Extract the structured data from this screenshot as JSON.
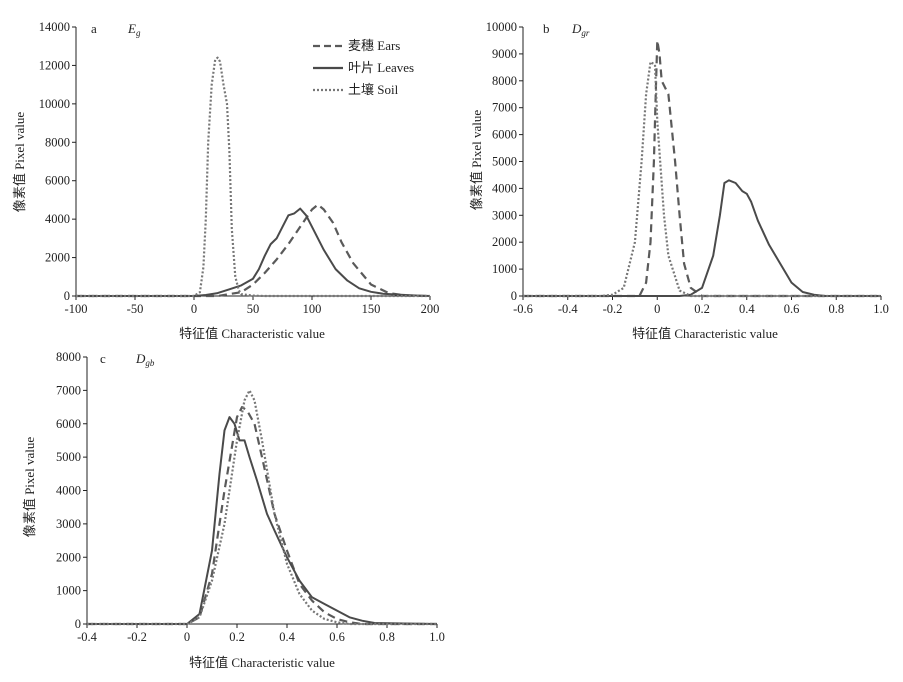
{
  "figure": {
    "legend": [
      {
        "label": "麦穗 Ears",
        "dash": "dash"
      },
      {
        "label": "叶片 Leaves",
        "dash": "solid"
      },
      {
        "label": "土壤 Soil",
        "dash": "dot"
      }
    ],
    "colors": {
      "ears": "#5a5a5a",
      "leaves": "#4a4a4a",
      "soil": "#777777"
    }
  },
  "chart_data": [
    {
      "type": "line",
      "panel": "a",
      "var_main": "E",
      "var_sub": "g",
      "xlabel": "特征值 Characteristic value",
      "ylabel": "像素值 Pixel value",
      "xlim": [
        -100,
        200
      ],
      "ylim": [
        0,
        14000
      ],
      "xticks": [
        -100,
        -50,
        0,
        50,
        100,
        150,
        200
      ],
      "yticks": [
        0,
        2000,
        4000,
        6000,
        8000,
        10000,
        12000,
        14000
      ],
      "legend_position": "top-right",
      "series": [
        {
          "name": "麦穗 Ears",
          "style": "dash",
          "x": [
            -100,
            20,
            40,
            50,
            60,
            70,
            80,
            90,
            100,
            105,
            110,
            118,
            125,
            135,
            150,
            165,
            180,
            200
          ],
          "y": [
            0,
            0,
            200,
            600,
            1200,
            1900,
            2700,
            3600,
            4500,
            4750,
            4500,
            3800,
            2800,
            1700,
            600,
            150,
            20,
            0
          ]
        },
        {
          "name": "叶片 Leaves",
          "style": "solid",
          "x": [
            -100,
            0,
            10,
            20,
            30,
            40,
            50,
            55,
            60,
            65,
            70,
            75,
            80,
            85,
            90,
            95,
            100,
            110,
            120,
            130,
            140,
            150,
            160,
            175,
            190,
            200
          ],
          "y": [
            0,
            0,
            50,
            150,
            350,
            550,
            900,
            1400,
            2100,
            2700,
            3000,
            3600,
            4200,
            4300,
            4550,
            4200,
            3600,
            2400,
            1400,
            800,
            400,
            220,
            120,
            60,
            20,
            0
          ]
        },
        {
          "name": "土壤 Soil",
          "style": "dot",
          "x": [
            -100,
            0,
            5,
            8,
            10,
            12,
            15,
            18,
            20,
            22,
            25,
            28,
            30,
            32,
            35,
            38,
            40,
            50,
            60,
            200
          ],
          "y": [
            0,
            0,
            200,
            1500,
            4000,
            8000,
            11000,
            12300,
            12400,
            12200,
            11000,
            10000,
            7500,
            3500,
            1000,
            300,
            100,
            20,
            0,
            0
          ]
        }
      ]
    },
    {
      "type": "line",
      "panel": "b",
      "var_main": "D",
      "var_sub": "gr",
      "xlabel": "特征值 Characteristic value",
      "ylabel": "像素值 Pixel value",
      "xlim": [
        -0.6,
        1.0
      ],
      "ylim": [
        0,
        10000
      ],
      "xticks": [
        -0.6,
        -0.4,
        -0.2,
        0,
        0.2,
        0.4,
        0.6,
        0.8,
        1.0
      ],
      "yticks": [
        0,
        1000,
        2000,
        3000,
        4000,
        5000,
        6000,
        7000,
        8000,
        9000,
        10000
      ],
      "series": [
        {
          "name": "麦穗 Ears",
          "style": "dash",
          "x": [
            -0.6,
            -0.08,
            -0.05,
            -0.03,
            -0.015,
            -0.005,
            0.0,
            0.01,
            0.02,
            0.05,
            0.08,
            0.1,
            0.12,
            0.15,
            0.2,
            1.0
          ],
          "y": [
            0,
            0,
            500,
            2000,
            5000,
            8000,
            9500,
            9000,
            8000,
            7500,
            5000,
            3000,
            1200,
            300,
            0,
            0
          ]
        },
        {
          "name": "叶片 Leaves",
          "style": "solid",
          "x": [
            -0.6,
            0.1,
            0.15,
            0.2,
            0.25,
            0.28,
            0.3,
            0.32,
            0.35,
            0.38,
            0.4,
            0.42,
            0.45,
            0.5,
            0.55,
            0.6,
            0.65,
            0.7,
            0.75,
            1.0
          ],
          "y": [
            0,
            0,
            50,
            300,
            1500,
            3000,
            4200,
            4300,
            4200,
            3900,
            3800,
            3500,
            2800,
            1900,
            1200,
            500,
            150,
            50,
            0,
            0
          ]
        },
        {
          "name": "土壤 Soil",
          "style": "dot",
          "x": [
            -0.6,
            -0.25,
            -0.2,
            -0.15,
            -0.1,
            -0.07,
            -0.05,
            -0.03,
            -0.01,
            0.0,
            0.03,
            0.05,
            0.1,
            0.15,
            1.0
          ],
          "y": [
            0,
            0,
            50,
            300,
            2000,
            5000,
            7500,
            8700,
            8600,
            6500,
            3000,
            1500,
            200,
            0,
            0
          ]
        }
      ]
    },
    {
      "type": "line",
      "panel": "c",
      "var_main": "D",
      "var_sub": "gb",
      "xlabel": "特征值 Characteristic value",
      "ylabel": "像素值 Pixel value",
      "xlim": [
        -0.4,
        1.0
      ],
      "ylim": [
        0,
        8000
      ],
      "xticks": [
        -0.4,
        -0.2,
        0,
        0.2,
        0.4,
        0.6,
        0.8,
        1.0
      ],
      "yticks": [
        0,
        1000,
        2000,
        3000,
        4000,
        5000,
        6000,
        7000,
        8000
      ],
      "series": [
        {
          "name": "麦穗 Ears",
          "style": "dash",
          "x": [
            -0.4,
            0.0,
            0.05,
            0.1,
            0.15,
            0.2,
            0.22,
            0.24,
            0.27,
            0.3,
            0.35,
            0.4,
            0.45,
            0.5,
            0.55,
            0.6,
            0.65,
            0.7,
            1.0
          ],
          "y": [
            0,
            0,
            200,
            1500,
            4000,
            6200,
            6500,
            6400,
            6000,
            5000,
            3300,
            2200,
            1200,
            700,
            350,
            150,
            50,
            0,
            0
          ]
        },
        {
          "name": "叶片 Leaves",
          "style": "solid",
          "x": [
            -0.4,
            0.0,
            0.05,
            0.1,
            0.13,
            0.15,
            0.17,
            0.19,
            0.21,
            0.23,
            0.25,
            0.28,
            0.32,
            0.35,
            0.4,
            0.45,
            0.5,
            0.55,
            0.6,
            0.65,
            0.7,
            0.75,
            1.0
          ],
          "y": [
            0,
            0,
            300,
            2200,
            4500,
            5800,
            6200,
            6000,
            5500,
            5500,
            5000,
            4300,
            3300,
            2800,
            2000,
            1300,
            800,
            600,
            400,
            200,
            100,
            30,
            0
          ]
        },
        {
          "name": "土壤 Soil",
          "style": "dot",
          "x": [
            -0.4,
            0.0,
            0.05,
            0.1,
            0.15,
            0.2,
            0.23,
            0.25,
            0.27,
            0.3,
            0.35,
            0.4,
            0.45,
            0.5,
            0.55,
            0.6,
            0.65,
            1.0
          ],
          "y": [
            0,
            0,
            200,
            1300,
            3000,
            5500,
            6700,
            7000,
            6700,
            5500,
            3300,
            1800,
            900,
            400,
            150,
            50,
            0,
            0
          ]
        }
      ]
    }
  ]
}
